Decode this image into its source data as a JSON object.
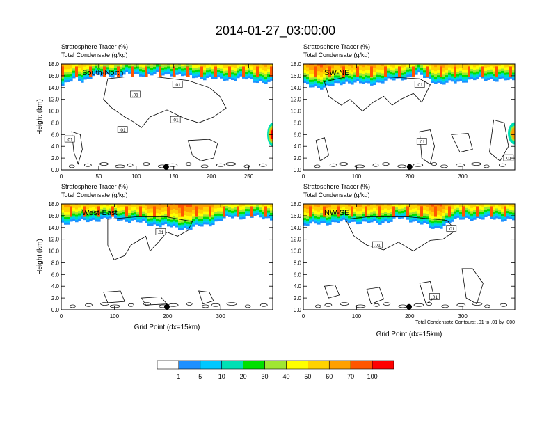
{
  "title": "2014-01-27_03:00:00",
  "chart_data": [
    {
      "type": "heatmap",
      "label": "South-North",
      "header": [
        "Stratosphere Tracer   (%)",
        "Total Condensate   (g/kg)"
      ],
      "ylabel": "Height (km)",
      "xlabel": "",
      "xlim": [
        0,
        282
      ],
      "ylim": [
        0,
        18
      ],
      "xticks": [
        0,
        50,
        100,
        150,
        200,
        250
      ],
      "yticks": [
        "0.0",
        "2.0",
        "4.0",
        "6.0",
        "8.0",
        "10.0",
        "12.0",
        "14.0",
        "16.0",
        "18.0"
      ],
      "marker_x": 140,
      "contour_labels": [
        ".01",
        ".01",
        ".01",
        ".01",
        ".01"
      ]
    },
    {
      "type": "heatmap",
      "label": "SW-NE",
      "header": [
        "Stratosphere Tracer   (%)",
        "Total Condensate   (g/kg)"
      ],
      "ylabel": "",
      "xlabel": "",
      "xlim": [
        0,
        398
      ],
      "ylim": [
        0,
        18
      ],
      "xticks": [
        0,
        100,
        200,
        300
      ],
      "yticks": [
        "0.0",
        "2.0",
        "4.0",
        "6.0",
        "8.0",
        "10.0",
        "12.0",
        "14.0",
        "16.0",
        "18.0"
      ],
      "marker_x": 200,
      "contour_labels": [
        ".01",
        ".01",
        ".01"
      ]
    },
    {
      "type": "heatmap",
      "label": "West-East",
      "header": [
        "Stratosphere Tracer   (%)",
        "Total Condensate   (g/kg)"
      ],
      "ylabel": "Height (km)",
      "xlabel": "Grid Point (dx=15km)",
      "xlim": [
        0,
        398
      ],
      "ylim": [
        0,
        18
      ],
      "xticks": [
        0,
        100,
        200,
        300
      ],
      "yticks": [
        "0.0",
        "2.0",
        "4.0",
        "6.0",
        "8.0",
        "10.0",
        "12.0",
        "14.0",
        "16.0",
        "18.0"
      ],
      "marker_x": 199,
      "contour_labels": [
        ".01"
      ]
    },
    {
      "type": "heatmap",
      "label": "NW-SE",
      "header": [
        "Stratosphere Tracer   (%)",
        "Total Condensate   (g/kg)"
      ],
      "ylabel": "",
      "xlabel": "Grid Point (dx=15km)",
      "xlim": [
        0,
        398
      ],
      "ylim": [
        0,
        18
      ],
      "xticks": [
        0,
        100,
        200,
        300
      ],
      "yticks": [
        "0.0",
        "2.0",
        "4.0",
        "6.0",
        "8.0",
        "10.0",
        "12.0",
        "14.0",
        "16.0",
        "18.0"
      ],
      "marker_x": 199,
      "contour_labels": [
        ".01",
        ".01",
        ".01"
      ],
      "note": "Total Condensate Contours: .01 to .01 by .000"
    }
  ],
  "colorbar": {
    "labels": [
      "1",
      "5",
      "10",
      "20",
      "30",
      "40",
      "50",
      "60",
      "70",
      "100"
    ],
    "colors": [
      "#ffffff",
      "#1e90ff",
      "#00c8ff",
      "#00e0b4",
      "#00e000",
      "#a0e632",
      "#ffff00",
      "#ffd200",
      "#ffa000",
      "#ff5500",
      "#ff0000"
    ]
  }
}
